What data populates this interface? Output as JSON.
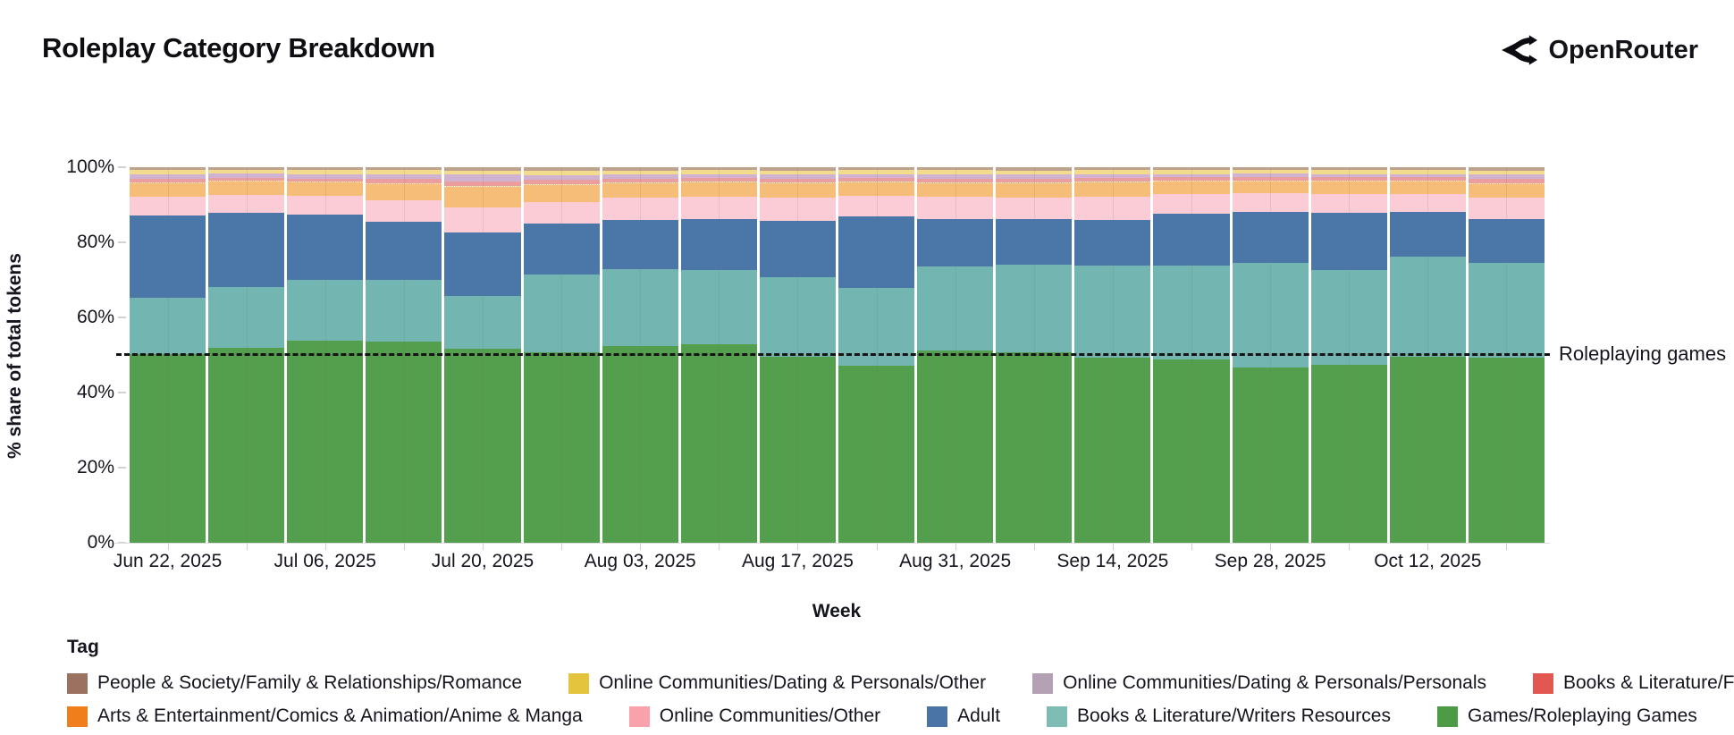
{
  "page": {
    "title": "Roleplay Category Breakdown",
    "brand": "OpenRouter"
  },
  "chart_data": {
    "type": "bar",
    "variant": "stacked-100-percent",
    "title": "Roleplay Category Breakdown",
    "xlabel": "Week",
    "ylabel": "% share of total tokens",
    "ylim": [
      0,
      100
    ],
    "grid": false,
    "ytick_labels": [
      "0%",
      "20%",
      "40%",
      "60%",
      "80%",
      "100%"
    ],
    "categories": [
      "Jun 22, 2025",
      "Jun 29, 2025",
      "Jul 06, 2025",
      "Jul 13, 2025",
      "Jul 20, 2025",
      "Jul 27, 2025",
      "Aug 03, 2025",
      "Aug 10, 2025",
      "Aug 17, 2025",
      "Aug 24, 2025",
      "Aug 31, 2025",
      "Sep 07, 2025",
      "Sep 14, 2025",
      "Sep 21, 2025",
      "Sep 28, 2025",
      "Oct 05, 2025",
      "Oct 12, 2025",
      "Oct 19, 2025"
    ],
    "xtick_shown": [
      "Jun 22, 2025",
      "Jul 06, 2025",
      "Jul 20, 2025",
      "Aug 03, 2025",
      "Aug 17, 2025",
      "Aug 31, 2025",
      "Sep 14, 2025",
      "Sep 28, 2025",
      "Oct 12, 2025"
    ],
    "annotation": {
      "y": 50,
      "label": "Roleplaying games"
    },
    "legend": {
      "title": "Tag",
      "position": "bottom-left",
      "rows": [
        [
          "People & Society/Family & Relationships/Romance",
          "Online Communities/Dating & Personals/Other",
          "Online Communities/Dating & Personals/Personals",
          "Books & Literature/Fan Fiction"
        ],
        [
          "Arts & Entertainment/Comics & Animation/Anime & Manga",
          "Online Communities/Other",
          "Adult",
          "Books & Literature/Writers Resources",
          "Games/Roleplaying Games"
        ]
      ]
    },
    "series": [
      {
        "name": "Games/Roleplaying Games",
        "bar_color": "#549f4d",
        "legend_color": "#4d9b46",
        "values": [
          50.3,
          52.0,
          54.0,
          53.8,
          51.8,
          50.8,
          52.6,
          53.0,
          49.7,
          47.2,
          51.4,
          50.9,
          49.5,
          49.0,
          46.8,
          47.5,
          49.7,
          49.3
        ]
      },
      {
        "name": "Books & Literature/Writers Resources",
        "bar_color": "#73b6b1",
        "legend_color": "#7cbcb5",
        "values": [
          15.0,
          16.2,
          16.1,
          16.4,
          14.0,
          20.8,
          20.5,
          19.9,
          21.1,
          20.7,
          22.3,
          23.2,
          24.5,
          24.9,
          27.8,
          25.4,
          26.6,
          25.5
        ]
      },
      {
        "name": "Adult",
        "bar_color": "#4b76a8",
        "legend_color": "#4a74a5",
        "values": [
          22.0,
          19.9,
          17.4,
          15.4,
          16.9,
          13.7,
          13.1,
          13.5,
          15.2,
          19.1,
          12.8,
          12.3,
          12.2,
          14.0,
          13.8,
          15.2,
          11.9,
          11.7
        ]
      },
      {
        "name": "Online Communities/Other",
        "bar_color": "#fbccd6",
        "legend_color": "#f9a2ac",
        "values": [
          5.1,
          4.7,
          5.0,
          5.9,
          6.8,
          5.7,
          5.9,
          5.9,
          6.0,
          5.5,
          5.8,
          5.8,
          6.2,
          5.1,
          4.8,
          4.9,
          4.9,
          5.5
        ]
      },
      {
        "name": "Arts & Entertainment/Comics & Animation/Anime & Manga",
        "bar_color": "#f6bd79",
        "legend_color": "#f07e1b",
        "pattern": "dottop",
        "values": [
          3.5,
          3.5,
          3.6,
          4.3,
          5.5,
          4.5,
          3.9,
          3.8,
          3.9,
          3.7,
          3.7,
          3.8,
          3.7,
          3.4,
          3.3,
          3.4,
          3.3,
          3.8
        ]
      },
      {
        "name": "Books & Literature/Fan Fiction",
        "bar_color": "#eb9e9e",
        "legend_color": "#e2574f",
        "values": [
          0.9,
          0.9,
          0.9,
          1.0,
          1.2,
          1.2,
          1.0,
          1.0,
          1.0,
          1.0,
          1.0,
          1.0,
          1.0,
          0.9,
          0.9,
          0.9,
          0.9,
          1.2
        ]
      },
      {
        "name": "Online Communities/Dating & Personals/Personals",
        "bar_color": "#cfb3d0",
        "legend_color": "#b3a0b5",
        "pattern": "dots",
        "values": [
          1.3,
          1.1,
          1.2,
          1.2,
          2.0,
          1.1,
          1.0,
          1.0,
          1.1,
          1.0,
          1.1,
          1.0,
          1.0,
          0.9,
          0.9,
          0.9,
          0.9,
          1.0
        ]
      },
      {
        "name": "Online Communities/Dating & Personals/Other",
        "bar_color": "#f3db8d",
        "legend_color": "#e4c33d",
        "values": [
          1.2,
          1.0,
          1.0,
          1.2,
          0.8,
          1.2,
          1.1,
          1.1,
          1.1,
          1.0,
          1.1,
          1.1,
          1.1,
          1.0,
          1.0,
          1.0,
          1.1,
          1.1
        ]
      },
      {
        "name": "People & Society/Family & Relationships/Romance",
        "bar_color": "#bda28d",
        "legend_color": "#9b7260",
        "values": [
          0.7,
          0.7,
          0.8,
          0.8,
          1.0,
          1.0,
          0.9,
          0.8,
          0.9,
          0.8,
          0.8,
          0.9,
          0.8,
          0.8,
          0.7,
          0.8,
          0.7,
          0.9
        ]
      }
    ]
  }
}
